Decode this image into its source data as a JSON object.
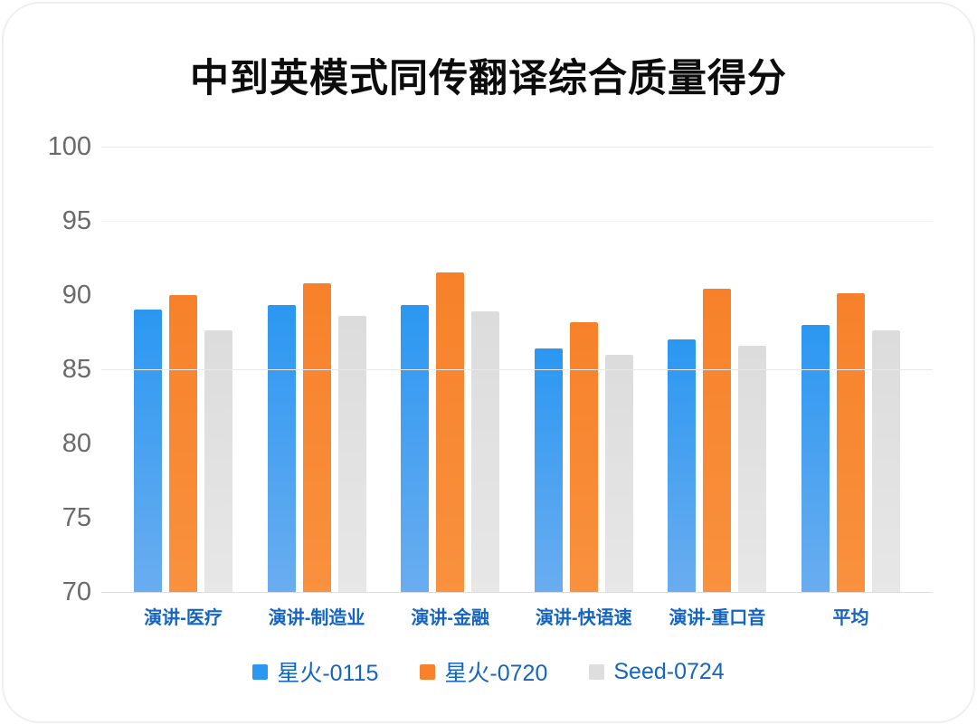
{
  "title": "中到英模式同传翻译综合质量得分",
  "colors": {
    "series_blue": "#2b97f1",
    "series_orange": "#f7822b",
    "series_gray": "#dedede",
    "label_blue": "#1565c0",
    "tick_gray": "#6a6a6a",
    "gridline": "#e9e9e9",
    "baseline": "#dcdcdc",
    "title_black": "#0c0c0c",
    "background": "#ffffff"
  },
  "chart_data": {
    "type": "bar",
    "title": "中到英模式同传翻译综合质量得分",
    "xlabel": "",
    "ylabel": "",
    "categories": [
      "演讲-医疗",
      "演讲-制造业",
      "演讲-金融",
      "演讲-快语速",
      "演讲-重口音",
      "平均"
    ],
    "series": [
      {
        "name": "星火-0115",
        "color": "#2b97f1",
        "color_top": "#2b97f1",
        "color_bottom": "#6aadf0",
        "values": [
          89.0,
          89.3,
          89.3,
          86.4,
          87.0,
          88.0
        ]
      },
      {
        "name": "星火-0720",
        "color": "#f7822b",
        "color_top": "#f7812a",
        "color_bottom": "#f9913e",
        "values": [
          90.0,
          90.8,
          91.5,
          88.2,
          90.4,
          90.1
        ]
      },
      {
        "name": "Seed-0724",
        "color": "#dedede",
        "color_top": "#dcdcdc",
        "color_bottom": "#e7e7e7",
        "values": [
          87.6,
          88.6,
          88.9,
          86.0,
          86.6,
          87.6
        ]
      }
    ],
    "ylim": [
      70,
      100
    ],
    "yticks": [
      100,
      95,
      90,
      85,
      80,
      75,
      70
    ],
    "gridline_ticks": [
      100,
      95,
      85
    ],
    "grid": true,
    "legend_position": "bottom",
    "legend": [
      "星火-0115",
      "星火-0720",
      "Seed-0724"
    ]
  }
}
